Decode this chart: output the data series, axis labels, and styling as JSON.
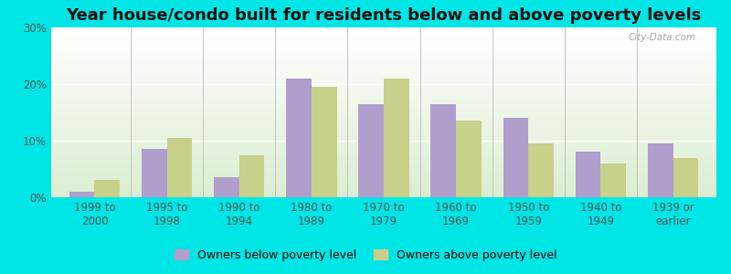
{
  "title": "Year house/condo built for residents below and above poverty levels",
  "categories": [
    "1999 to\n2000",
    "1995 to\n1998",
    "1990 to\n1994",
    "1980 to\n1989",
    "1970 to\n1979",
    "1960 to\n1969",
    "1950 to\n1959",
    "1940 to\n1949",
    "1939 or\nearlier"
  ],
  "below_poverty": [
    1.0,
    8.5,
    3.5,
    21.0,
    16.5,
    16.5,
    14.0,
    8.0,
    9.5
  ],
  "above_poverty": [
    3.0,
    10.5,
    7.5,
    19.5,
    21.0,
    13.5,
    9.5,
    6.0,
    7.0
  ],
  "below_color": "#b09fcc",
  "above_color": "#c8d08a",
  "ylim": [
    0,
    30
  ],
  "yticks": [
    0,
    10,
    20,
    30
  ],
  "outer_background": "#00e5e5",
  "legend_below_label": "Owners below poverty level",
  "legend_above_label": "Owners above poverty level",
  "bar_width": 0.35,
  "title_fontsize": 13,
  "tick_fontsize": 8.5,
  "legend_fontsize": 9,
  "watermark": "City-Data.com"
}
